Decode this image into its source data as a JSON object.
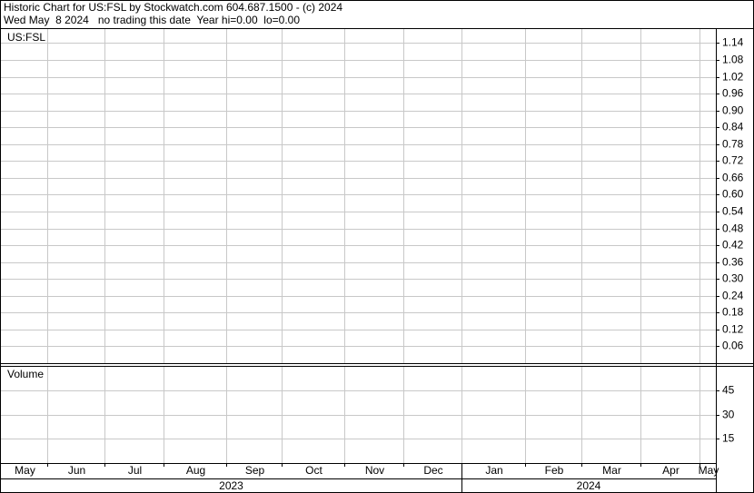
{
  "chart_data": [
    {
      "type": "line",
      "title": "Historic Chart for US:FSL by Stockwatch.com 604.687.1500 - (c) 2024",
      "subtitle": "Wed May  8 2024   no trading this date  Year hi=0.00  lo=0.00",
      "label": "US:FSL",
      "categories": [
        "May",
        "Jun",
        "Jul",
        "Aug",
        "Sep",
        "Oct",
        "Nov",
        "Dec",
        "Jan",
        "Feb",
        "Mar",
        "Apr",
        "May"
      ],
      "years": [
        "2023",
        "2024"
      ],
      "ylim": [
        0,
        1.19
      ],
      "yticks": [
        0.06,
        0.12,
        0.18,
        0.24,
        {
          "value": 0.3,
          "label": "0.30"
        },
        0.36,
        0.42,
        0.48,
        0.54,
        {
          "value": 0.6,
          "label": "0.60"
        },
        0.66,
        0.72,
        0.78,
        0.84,
        {
          "value": 0.9,
          "label": "0.90"
        },
        0.96,
        1.02,
        1.08,
        1.14
      ],
      "grid": true
    },
    {
      "type": "bar",
      "label": "Volume",
      "ylim": [
        0,
        60
      ],
      "yticks": [
        15,
        30,
        45
      ],
      "grid": true
    }
  ]
}
